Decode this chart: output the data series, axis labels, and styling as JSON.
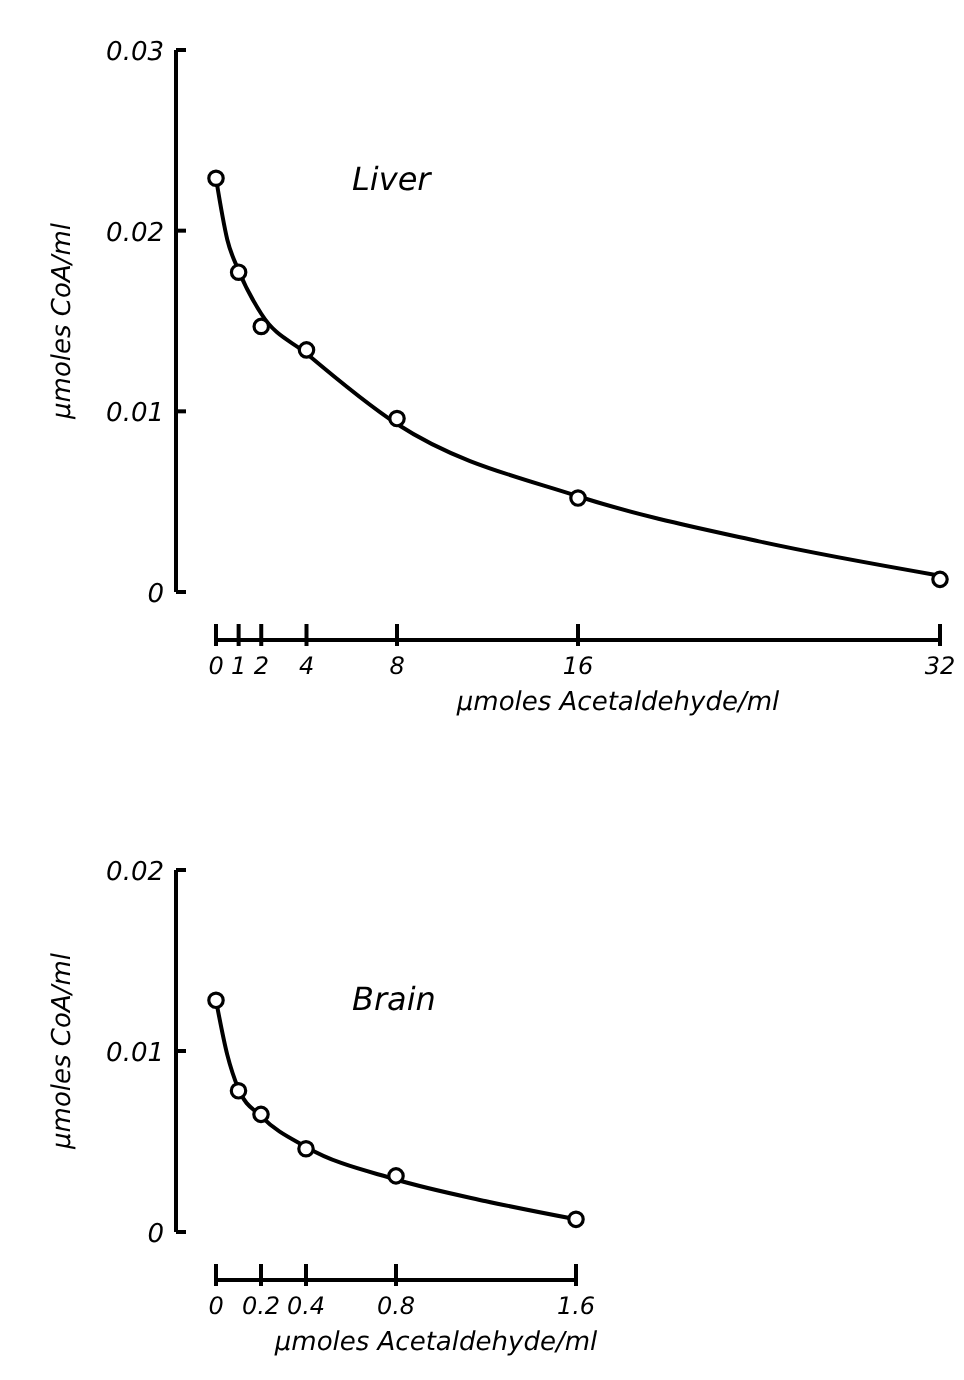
{
  "chart_data": [
    {
      "type": "scatter",
      "title": "Liver",
      "xlabel": "μmoles Acetaldehyde/ml",
      "ylabel": "μmoles CoA/ml",
      "xlim": [
        0,
        32
      ],
      "ylim": [
        0,
        0.03
      ],
      "xticks": [
        0,
        1,
        2,
        4,
        8,
        16,
        32
      ],
      "yticks": [
        0,
        0.01,
        0.02,
        0.03
      ],
      "series": [
        {
          "type": "line",
          "color": "#000000",
          "marker": "none",
          "line_style": "solid",
          "x": [
            0,
            0.5,
            1,
            2,
            4,
            8,
            16,
            24,
            32
          ],
          "values": [
            0.0229,
            0.0195,
            0.0178,
            0.0154,
            0.0132,
            0.0093,
            0.0053,
            0.0028,
            0.0009
          ]
        },
        {
          "type": "scatter",
          "color": "#000000",
          "marker": "circle",
          "x": [
            0,
            1,
            2,
            4,
            8,
            16,
            32
          ],
          "values": [
            0.0229,
            0.0177,
            0.0147,
            0.0134,
            0.0096,
            0.0052,
            0.0007
          ]
        }
      ]
    },
    {
      "type": "scatter",
      "title": "Brain",
      "xlabel": "μmoles Acetaldehyde/ml",
      "ylabel": "μmoles CoA/ml",
      "xlim": [
        0,
        1.6
      ],
      "ylim": [
        0,
        0.02
      ],
      "xticks": [
        0,
        0.2,
        0.4,
        0.8,
        1.6
      ],
      "yticks": [
        0,
        0.01,
        0.02
      ],
      "series": [
        {
          "type": "line",
          "color": "#000000",
          "marker": "none",
          "line_style": "solid",
          "x": [
            0,
            0.05,
            0.1,
            0.2,
            0.4,
            0.8,
            1.2,
            1.6
          ],
          "values": [
            0.0128,
            0.0098,
            0.0079,
            0.0064,
            0.0047,
            0.0029,
            0.0017,
            0.0007
          ]
        },
        {
          "type": "scatter",
          "color": "#000000",
          "marker": "circle",
          "x": [
            0,
            0.1,
            0.2,
            0.4,
            0.8,
            1.6
          ],
          "values": [
            0.0128,
            0.0078,
            0.0065,
            0.0046,
            0.0031,
            0.0007
          ]
        }
      ]
    }
  ]
}
